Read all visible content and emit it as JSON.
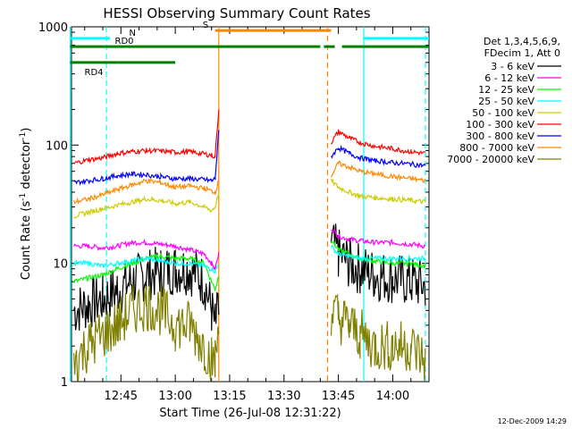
{
  "chart_data": {
    "type": "line",
    "title": "HESSI Observing Summary Count Rates",
    "xlabel": "Start Time (26-Jul-08 12:31:22)",
    "ylabel_main": "Count Rate (s",
    "ylabel_sup1": "-1",
    "ylabel_mid": " detector",
    "ylabel_sup2": "-1",
    "ylabel_end": ")",
    "y_scale": "log",
    "ylim": [
      1,
      1000
    ],
    "xlim": [
      "12:31:22",
      "14:10:00"
    ],
    "x_ticks": [
      "12:45",
      "13:00",
      "13:15",
      "13:30",
      "13:45",
      "14:00"
    ],
    "y_ticks": [
      "1",
      "10",
      "100",
      "1000"
    ],
    "footer_date": "12-Dec-2009 14:29",
    "legend_header": [
      "Det 1,3,4,5,6,9,",
      "FDecim 1, Att 0"
    ],
    "series": [
      {
        "name": "3 - 6 keV",
        "color": "#000000",
        "x": [
          "12:32",
          "12:36",
          "12:40",
          "12:44",
          "12:48",
          "12:52",
          "12:56",
          "13:00",
          "13:04",
          "13:08",
          "13:10",
          "13:11",
          "13:12",
          "13:43",
          "13:45",
          "13:48",
          "13:51",
          "13:55",
          "14:00",
          "14:05",
          "14:09"
        ],
        "y": [
          4,
          4.5,
          5,
          6,
          7,
          8,
          8.5,
          9,
          9,
          7,
          4,
          3,
          4,
          15,
          12,
          10,
          9,
          8,
          7.5,
          7,
          6.5
        ]
      },
      {
        "name": "6 - 12 keV",
        "color": "#ff00ff",
        "x": [
          "12:32",
          "12:36",
          "12:40",
          "12:44",
          "12:48",
          "12:52",
          "12:56",
          "13:00",
          "13:04",
          "13:08",
          "13:10",
          "13:11",
          "13:12",
          "13:43",
          "13:45",
          "13:48",
          "13:51",
          "13:55",
          "14:00",
          "14:05",
          "14:09"
        ],
        "y": [
          14,
          14,
          13.5,
          14,
          15,
          15,
          14.5,
          14,
          13,
          12,
          10,
          9,
          12,
          20,
          17,
          16,
          15.5,
          15,
          15,
          14.5,
          14
        ]
      },
      {
        "name": "12 - 25 keV",
        "color": "#00ff00",
        "x": [
          "12:32",
          "12:36",
          "12:40",
          "12:44",
          "12:48",
          "12:52",
          "12:56",
          "13:00",
          "13:04",
          "13:08",
          "13:10",
          "13:11",
          "13:12",
          "13:43",
          "13:45",
          "13:48",
          "13:51",
          "13:55",
          "14:00",
          "14:05",
          "14:09"
        ],
        "y": [
          7,
          7.5,
          8,
          9,
          10,
          11,
          11.5,
          11,
          11,
          10,
          7,
          6,
          8,
          16,
          13,
          12,
          11,
          10.5,
          10,
          10,
          9.5
        ]
      },
      {
        "name": "25 - 50 keV",
        "color": "#00ffff",
        "x": [
          "12:32",
          "12:36",
          "12:40",
          "12:44",
          "12:48",
          "12:52",
          "12:56",
          "13:00",
          "13:04",
          "13:08",
          "13:10",
          "13:11",
          "13:12",
          "13:43",
          "13:45",
          "13:48",
          "13:51",
          "13:55",
          "14:00",
          "14:05",
          "14:09"
        ],
        "y": [
          10,
          10,
          9.5,
          10,
          10.5,
          11,
          10.5,
          10,
          10,
          9.5,
          9,
          8.5,
          10,
          14,
          12,
          11.5,
          11,
          11,
          11,
          11,
          11
        ]
      },
      {
        "name": "50 - 100 keV",
        "color": "#cccc00",
        "x": [
          "12:32",
          "12:36",
          "12:40",
          "12:44",
          "12:48",
          "12:52",
          "12:56",
          "13:00",
          "13:04",
          "13:08",
          "13:10",
          "13:11",
          "13:12",
          "13:43",
          "13:45",
          "13:48",
          "13:51",
          "13:55",
          "14:00",
          "14:05",
          "14:09"
        ],
        "y": [
          25,
          27,
          29,
          31,
          33,
          35,
          34,
          32,
          33,
          30,
          28,
          30,
          40,
          50,
          44,
          40,
          37,
          36,
          35,
          34,
          33
        ]
      },
      {
        "name": "100 - 300 keV",
        "color": "#ff0000",
        "x": [
          "12:32",
          "12:36",
          "12:40",
          "12:44",
          "12:48",
          "12:52",
          "12:56",
          "13:00",
          "13:04",
          "13:08",
          "13:10",
          "13:11",
          "13:12",
          "13:43",
          "13:45",
          "13:48",
          "13:51",
          "13:55",
          "14:00",
          "14:05",
          "14:09"
        ],
        "y": [
          70,
          75,
          78,
          85,
          88,
          90,
          89,
          87,
          88,
          84,
          82,
          80,
          200,
          105,
          130,
          115,
          105,
          98,
          93,
          88,
          85
        ]
      },
      {
        "name": "300 - 800 keV",
        "color": "#0000ff",
        "x": [
          "12:32",
          "12:36",
          "12:40",
          "12:44",
          "12:48",
          "12:52",
          "12:56",
          "13:00",
          "13:04",
          "13:08",
          "13:10",
          "13:11",
          "13:12",
          "13:43",
          "13:45",
          "13:48",
          "13:51",
          "13:55",
          "14:00",
          "14:05",
          "14:09"
        ],
        "y": [
          48,
          50,
          52,
          55,
          57,
          56,
          54,
          52,
          52,
          51,
          50,
          52,
          130,
          80,
          95,
          85,
          78,
          74,
          71,
          69,
          67
        ]
      },
      {
        "name": "800 - 7000 keV",
        "color": "#ff8800",
        "x": [
          "12:32",
          "12:36",
          "12:40",
          "12:44",
          "12:48",
          "12:52",
          "12:56",
          "13:00",
          "13:04",
          "13:08",
          "13:10",
          "13:11",
          "13:12",
          "13:43",
          "13:45",
          "13:48",
          "13:51",
          "13:55",
          "14:00",
          "14:05",
          "14:09"
        ],
        "y": [
          33,
          35,
          38,
          42,
          46,
          50,
          48,
          44,
          45,
          43,
          41,
          40,
          50,
          55,
          70,
          65,
          60,
          57,
          54,
          52,
          50
        ]
      },
      {
        "name": "7000 - 20000 keV",
        "color": "#808000",
        "x": [
          "12:32",
          "12:36",
          "12:40",
          "12:44",
          "12:48",
          "12:52",
          "12:56",
          "13:00",
          "13:04",
          "13:08",
          "13:10",
          "13:11",
          "13:12",
          "13:43",
          "13:45",
          "13:48",
          "13:51",
          "13:55",
          "14:00",
          "14:05",
          "14:09"
        ],
        "y": [
          1.5,
          2,
          2.5,
          3,
          4,
          4.5,
          4,
          3,
          3,
          2,
          1.5,
          1.5,
          3,
          4,
          3.5,
          3,
          2.5,
          2,
          2,
          2,
          1.5
        ]
      }
    ],
    "flag_bars": [
      {
        "label": "N",
        "color": "#00ffff",
        "level": 800,
        "segments": [
          [
            "12:31",
            "12:42"
          ],
          [
            "13:52",
            "14:10"
          ]
        ]
      },
      {
        "label": "RD0",
        "color": "#008000",
        "level": 680,
        "segments": [
          [
            "12:31",
            "13:40"
          ],
          [
            "13:41",
            "13:44"
          ],
          [
            "13:46",
            "14:10"
          ]
        ]
      },
      {
        "label": "RD4",
        "color": "#008000",
        "level": 500,
        "segments": [
          [
            "12:31",
            "12:44"
          ],
          [
            "12:44",
            "13:00"
          ]
        ]
      },
      {
        "label": "S",
        "color": "#ff8800",
        "level": 930,
        "segments": [
          [
            "13:11",
            "13:43"
          ]
        ]
      }
    ],
    "vertical_markers": [
      {
        "color": "#00ffff",
        "time": "12:41",
        "style": "dashed"
      },
      {
        "color": "#00ffff",
        "time": "13:52",
        "style": "solid"
      },
      {
        "color": "#00ffff",
        "time": "14:09",
        "style": "dashed"
      },
      {
        "color": "#ff8800",
        "time": "13:12",
        "style": "solid"
      },
      {
        "color": "#ff8800",
        "time": "13:42",
        "style": "dashed"
      },
      {
        "color": "#00ffff",
        "time": "12:31",
        "style": "solid"
      }
    ]
  }
}
